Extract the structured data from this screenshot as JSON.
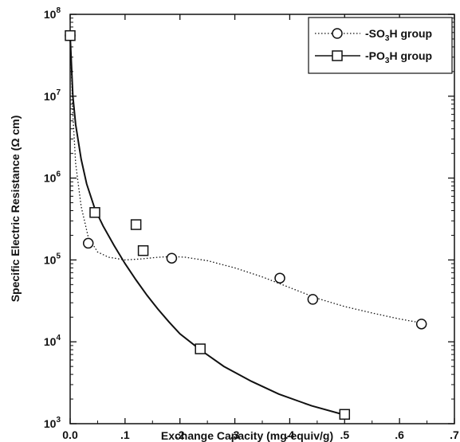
{
  "chart_data": {
    "type": "scatter",
    "title": "",
    "xlabel": "Exchange Capacity (mg-equiv/g)",
    "ylabel": "Specific Electric Resistance (Ω cm)",
    "xlim": [
      0.0,
      0.7
    ],
    "ylim": [
      1000,
      100000000
    ],
    "yscale": "log",
    "grid": false,
    "legend_position": "top-right",
    "x_ticks": [
      {
        "value": 0.0,
        "label": "0.0"
      },
      {
        "value": 0.1,
        "label": ".1"
      },
      {
        "value": 0.2,
        "label": ".2"
      },
      {
        "value": 0.3,
        "label": ".3"
      },
      {
        "value": 0.4,
        "label": ".4"
      },
      {
        "value": 0.5,
        "label": ".5"
      },
      {
        "value": 0.6,
        "label": ".6"
      },
      {
        "value": 0.7,
        "label": ".7"
      }
    ],
    "y_ticks": [
      {
        "value": 1000,
        "base": "10",
        "exp": "3"
      },
      {
        "value": 10000,
        "base": "10",
        "exp": "4"
      },
      {
        "value": 100000,
        "base": "10",
        "exp": "5"
      },
      {
        "value": 1000000,
        "base": "10",
        "exp": "6"
      },
      {
        "value": 10000000,
        "base": "10",
        "exp": "7"
      },
      {
        "value": 100000000,
        "base": "10",
        "exp": "8"
      }
    ],
    "series": [
      {
        "name": "-SO3H group",
        "label_parts": [
          "-SO",
          "3",
          "H group"
        ],
        "marker": "circle",
        "line_style": "dotted",
        "points": [
          {
            "x": 0.0,
            "y": 55000000
          },
          {
            "x": 0.033,
            "y": 160000
          },
          {
            "x": 0.185,
            "y": 105000
          },
          {
            "x": 0.382,
            "y": 60000
          },
          {
            "x": 0.442,
            "y": 33000
          },
          {
            "x": 0.64,
            "y": 16500
          }
        ],
        "curve": [
          {
            "x": 0.0,
            "y": 55000000
          },
          {
            "x": 0.005,
            "y": 6000000
          },
          {
            "x": 0.01,
            "y": 1500000
          },
          {
            "x": 0.02,
            "y": 450000
          },
          {
            "x": 0.033,
            "y": 190000
          },
          {
            "x": 0.05,
            "y": 125000
          },
          {
            "x": 0.07,
            "y": 108000
          },
          {
            "x": 0.1,
            "y": 100000
          },
          {
            "x": 0.13,
            "y": 103000
          },
          {
            "x": 0.16,
            "y": 108000
          },
          {
            "x": 0.185,
            "y": 110000
          },
          {
            "x": 0.21,
            "y": 108000
          },
          {
            "x": 0.25,
            "y": 98000
          },
          {
            "x": 0.3,
            "y": 80000
          },
          {
            "x": 0.35,
            "y": 62000
          },
          {
            "x": 0.4,
            "y": 46000
          },
          {
            "x": 0.45,
            "y": 34000
          },
          {
            "x": 0.5,
            "y": 27000
          },
          {
            "x": 0.55,
            "y": 22500
          },
          {
            "x": 0.6,
            "y": 19000
          },
          {
            "x": 0.64,
            "y": 17000
          }
        ]
      },
      {
        "name": "-PO3H group",
        "label_parts": [
          "-PO",
          "3",
          "H group"
        ],
        "marker": "square",
        "line_style": "solid",
        "points": [
          {
            "x": 0.0,
            "y": 55000000
          },
          {
            "x": 0.045,
            "y": 380000
          },
          {
            "x": 0.12,
            "y": 270000
          },
          {
            "x": 0.133,
            "y": 130000
          },
          {
            "x": 0.237,
            "y": 8200
          },
          {
            "x": 0.5,
            "y": 1300
          }
        ],
        "curve": [
          {
            "x": 0.0,
            "y": 55000000
          },
          {
            "x": 0.005,
            "y": 10000000
          },
          {
            "x": 0.01,
            "y": 4500000
          },
          {
            "x": 0.02,
            "y": 1700000
          },
          {
            "x": 0.03,
            "y": 850000
          },
          {
            "x": 0.045,
            "y": 420000
          },
          {
            "x": 0.06,
            "y": 260000
          },
          {
            "x": 0.08,
            "y": 150000
          },
          {
            "x": 0.1,
            "y": 90000
          },
          {
            "x": 0.12,
            "y": 57000
          },
          {
            "x": 0.14,
            "y": 37000
          },
          {
            "x": 0.16,
            "y": 25000
          },
          {
            "x": 0.18,
            "y": 17500
          },
          {
            "x": 0.2,
            "y": 12500
          },
          {
            "x": 0.237,
            "y": 8000
          },
          {
            "x": 0.28,
            "y": 5000
          },
          {
            "x": 0.33,
            "y": 3300
          },
          {
            "x": 0.38,
            "y": 2300
          },
          {
            "x": 0.44,
            "y": 1650
          },
          {
            "x": 0.5,
            "y": 1280
          }
        ]
      }
    ]
  }
}
